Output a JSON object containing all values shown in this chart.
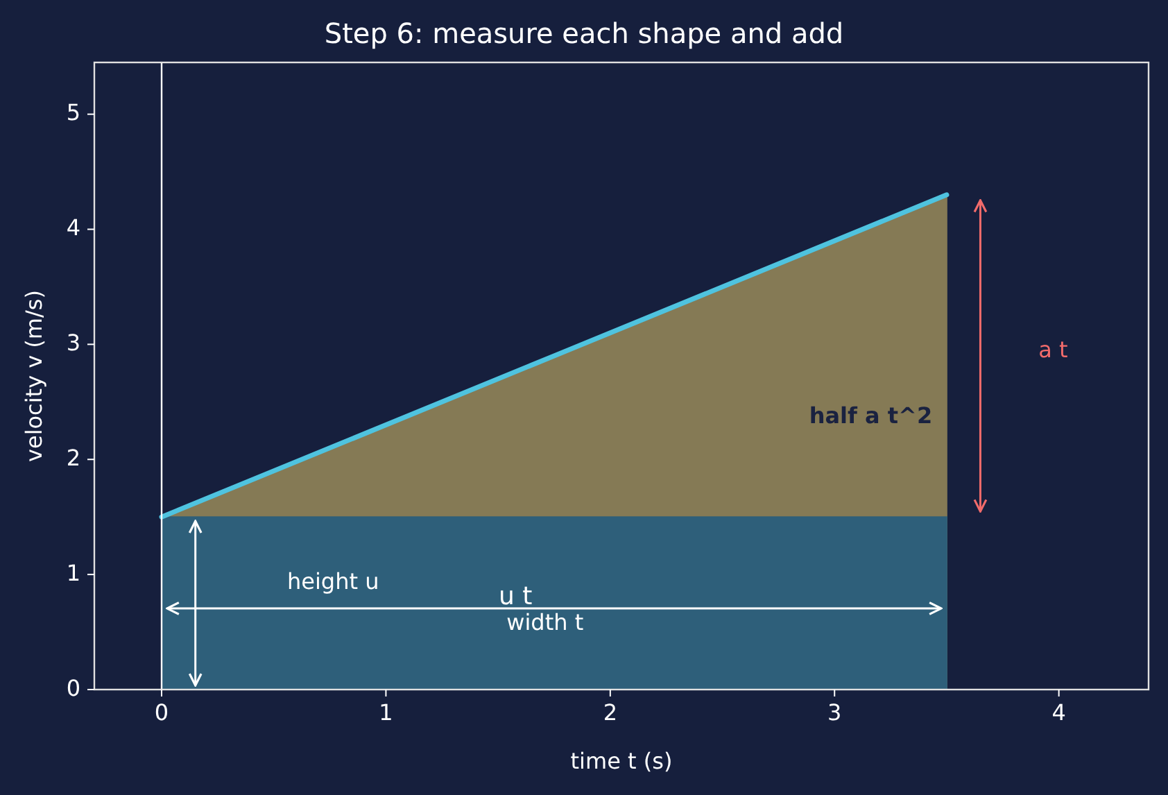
{
  "chart_data": {
    "type": "area",
    "title": "Step 6: measure each shape and add",
    "xlabel": "time  t  (s)",
    "ylabel": "velocity  v  (m/s)",
    "x": [
      0,
      3.5
    ],
    "series": [
      {
        "color": "#857a55",
        "values": [
          1.5,
          4.3
        ]
      },
      {
        "color": "#2e5f7a",
        "values": [
          1.5,
          1.5
        ]
      },
      {
        "type": "line",
        "color": "#4fc3df",
        "values": [
          1.5,
          4.3
        ]
      }
    ],
    "xlim": [
      -0.3,
      4.4
    ],
    "ylim": [
      0,
      5.45
    ],
    "xticks": [
      0,
      1,
      2,
      3,
      4
    ],
    "yticks": [
      0,
      1,
      2,
      3,
      4,
      5
    ],
    "ref_lines": [
      {
        "axis": "x",
        "value": 0,
        "color": "#ffffff"
      }
    ],
    "annotations": [
      "half a t^2",
      "u t",
      "width t",
      "height u",
      "a t"
    ]
  }
}
